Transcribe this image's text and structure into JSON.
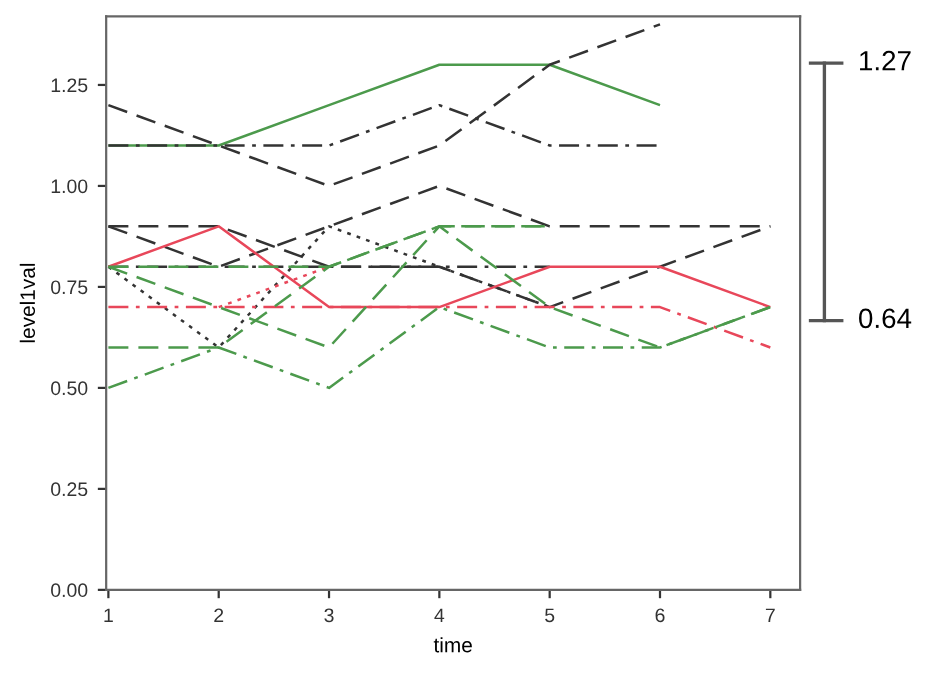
{
  "chart_data": {
    "type": "line",
    "xlabel": "time",
    "ylabel": "level1val",
    "xlim": [
      0.98,
      7.27
    ],
    "xticks": [
      1,
      2,
      3,
      4,
      5,
      6,
      7
    ],
    "ylim": [
      0,
      1.42
    ],
    "yticks": [
      {
        "value": 0,
        "label": "0.00"
      },
      {
        "value": 0.25,
        "label": "0.25"
      },
      {
        "value": 0.5,
        "label": "0.50"
      },
      {
        "value": 0.75,
        "label": "0.75"
      },
      {
        "value": 1.0,
        "label": "1.00"
      },
      {
        "value": 1.25,
        "label": "1.25"
      }
    ],
    "grid": false,
    "marker": "none",
    "x": [
      1,
      2,
      3,
      4,
      5,
      6,
      7
    ],
    "series": [
      {
        "color": "#4c9a4c",
        "line_style": "solid",
        "values": [
          1.1,
          1.1,
          1.2,
          1.3,
          1.3,
          1.2,
          null
        ]
      },
      {
        "color": "#333333",
        "line_style": "dashed",
        "values": [
          1.2,
          1.1,
          1.0,
          1.1,
          1.3,
          1.4,
          null
        ]
      },
      {
        "color": "#333333",
        "line_style": "dashdot",
        "values": [
          1.1,
          1.1,
          1.1,
          1.2,
          1.1,
          1.1,
          null
        ]
      },
      {
        "color": "#333333",
        "line_style": "dashed",
        "values": [
          0.9,
          0.8,
          0.9,
          1.0,
          0.9,
          0.9,
          0.9
        ]
      },
      {
        "color": "#333333",
        "line_style": "dashed",
        "values": [
          0.9,
          0.9,
          0.8,
          0.8,
          0.7,
          0.8,
          0.9
        ]
      },
      {
        "color": "#333333",
        "line_style": "dashdot",
        "values": [
          0.8,
          0.8,
          0.8,
          0.8,
          0.8,
          null,
          null
        ]
      },
      {
        "color": "#333333",
        "line_style": "dotted",
        "values": [
          0.8,
          0.6,
          0.9,
          0.8,
          0.7,
          null,
          null
        ]
      },
      {
        "color": "#e8475a",
        "line_style": "solid",
        "values": [
          0.8,
          0.9,
          0.7,
          0.7,
          0.8,
          0.8,
          0.7
        ]
      },
      {
        "color": "#e8475a",
        "line_style": "dashdot",
        "values": [
          0.7,
          0.7,
          0.7,
          0.7,
          0.7,
          0.7,
          0.6
        ]
      },
      {
        "color": "#e8475a",
        "line_style": "dotted",
        "values": [
          null,
          0.7,
          0.8,
          null,
          null,
          null,
          null
        ]
      },
      {
        "color": "#4c9a4c",
        "line_style": "dashed",
        "values": [
          0.6,
          0.6,
          0.8,
          0.9,
          0.9,
          null,
          null
        ]
      },
      {
        "color": "#4c9a4c",
        "line_style": "dashdot",
        "values": [
          0.5,
          0.6,
          0.5,
          0.7,
          0.6,
          0.6,
          0.7
        ]
      },
      {
        "color": "#4c9a4c",
        "line_style": "dashed",
        "values": [
          0.8,
          0.7,
          0.6,
          0.9,
          0.7,
          0.6,
          0.7
        ]
      },
      {
        "color": "#4c9a4c",
        "line_style": "dashed",
        "values": [
          0.8,
          0.8,
          0.8,
          0.9,
          0.9,
          null,
          null
        ]
      }
    ],
    "annotations": [
      "1.27",
      "0.64"
    ]
  }
}
